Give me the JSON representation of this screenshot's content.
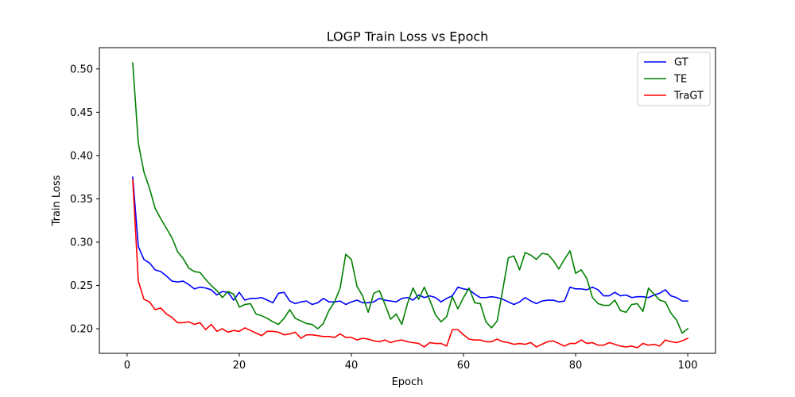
{
  "chart_data": {
    "type": "line",
    "title": "LOGP Train Loss vs Epoch",
    "xlabel": "Epoch",
    "ylabel": "Train Loss",
    "xlim": [
      -4.95,
      104.95
    ],
    "ylim": [
      0.1716,
      0.5246
    ],
    "xticks": [
      0,
      20,
      40,
      60,
      80,
      100
    ],
    "yticks": [
      0.2,
      0.25,
      0.3,
      0.35,
      0.4,
      0.45,
      0.5
    ],
    "xtick_labels": [
      "0",
      "20",
      "40",
      "60",
      "80",
      "100"
    ],
    "ytick_labels": [
      "0.20",
      "0.25",
      "0.30",
      "0.35",
      "0.40",
      "0.45",
      "0.50"
    ],
    "grid": false,
    "legend": "top-right",
    "x": [
      1,
      2,
      3,
      4,
      5,
      6,
      7,
      8,
      9,
      10,
      11,
      12,
      13,
      14,
      15,
      16,
      17,
      18,
      19,
      20,
      21,
      22,
      23,
      24,
      25,
      26,
      27,
      28,
      29,
      30,
      31,
      32,
      33,
      34,
      35,
      36,
      37,
      38,
      39,
      40,
      41,
      42,
      43,
      44,
      45,
      46,
      47,
      48,
      49,
      50,
      51,
      52,
      53,
      54,
      55,
      56,
      57,
      58,
      59,
      60,
      61,
      62,
      63,
      64,
      65,
      66,
      67,
      68,
      69,
      70,
      71,
      72,
      73,
      74,
      75,
      76,
      77,
      78,
      79,
      80,
      81,
      82,
      83,
      84,
      85,
      86,
      87,
      88,
      89,
      90,
      91,
      92,
      93,
      94,
      95,
      96,
      97,
      98,
      99,
      100
    ],
    "series": [
      {
        "name": "GT",
        "color": "#0000ff",
        "values": [
          0.375,
          0.295,
          0.28,
          0.276,
          0.268,
          0.266,
          0.261,
          0.255,
          0.254,
          0.255,
          0.251,
          0.246,
          0.248,
          0.247,
          0.245,
          0.239,
          0.243,
          0.242,
          0.233,
          0.242,
          0.233,
          0.235,
          0.235,
          0.236,
          0.233,
          0.23,
          0.241,
          0.242,
          0.232,
          0.229,
          0.231,
          0.232,
          0.228,
          0.23,
          0.235,
          0.231,
          0.231,
          0.232,
          0.228,
          0.231,
          0.233,
          0.23,
          0.23,
          0.231,
          0.235,
          0.233,
          0.232,
          0.231,
          0.235,
          0.236,
          0.233,
          0.239,
          0.236,
          0.238,
          0.236,
          0.231,
          0.235,
          0.238,
          0.248,
          0.246,
          0.245,
          0.24,
          0.236,
          0.236,
          0.237,
          0.236,
          0.234,
          0.231,
          0.228,
          0.231,
          0.236,
          0.232,
          0.229,
          0.232,
          0.233,
          0.233,
          0.231,
          0.232,
          0.248,
          0.246,
          0.246,
          0.245,
          0.248,
          0.245,
          0.238,
          0.238,
          0.242,
          0.238,
          0.239,
          0.236,
          0.237,
          0.237,
          0.236,
          0.239,
          0.241,
          0.245,
          0.238,
          0.236,
          0.232,
          0.232
        ]
      },
      {
        "name": "TE",
        "color": "#008000",
        "values": [
          0.507,
          0.414,
          0.381,
          0.362,
          0.339,
          0.327,
          0.316,
          0.305,
          0.289,
          0.281,
          0.27,
          0.266,
          0.265,
          0.257,
          0.25,
          0.244,
          0.236,
          0.243,
          0.24,
          0.225,
          0.228,
          0.229,
          0.217,
          0.215,
          0.212,
          0.208,
          0.205,
          0.212,
          0.222,
          0.212,
          0.209,
          0.206,
          0.205,
          0.2,
          0.206,
          0.221,
          0.231,
          0.247,
          0.286,
          0.28,
          0.249,
          0.238,
          0.219,
          0.241,
          0.244,
          0.228,
          0.211,
          0.217,
          0.205,
          0.229,
          0.247,
          0.234,
          0.248,
          0.233,
          0.216,
          0.208,
          0.214,
          0.237,
          0.223,
          0.236,
          0.247,
          0.23,
          0.229,
          0.208,
          0.201,
          0.209,
          0.245,
          0.282,
          0.284,
          0.268,
          0.288,
          0.285,
          0.28,
          0.287,
          0.286,
          0.279,
          0.269,
          0.28,
          0.29,
          0.264,
          0.268,
          0.258,
          0.236,
          0.229,
          0.227,
          0.227,
          0.233,
          0.221,
          0.219,
          0.228,
          0.229,
          0.22,
          0.247,
          0.24,
          0.233,
          0.231,
          0.218,
          0.21,
          0.195,
          0.2
        ]
      },
      {
        "name": "TraGT",
        "color": "#ff0000",
        "values": [
          0.372,
          0.255,
          0.234,
          0.231,
          0.222,
          0.224,
          0.217,
          0.213,
          0.207,
          0.207,
          0.208,
          0.205,
          0.207,
          0.199,
          0.205,
          0.197,
          0.2,
          0.196,
          0.198,
          0.197,
          0.201,
          0.198,
          0.195,
          0.192,
          0.197,
          0.197,
          0.196,
          0.193,
          0.194,
          0.196,
          0.189,
          0.193,
          0.193,
          0.192,
          0.191,
          0.191,
          0.19,
          0.194,
          0.19,
          0.19,
          0.187,
          0.189,
          0.188,
          0.186,
          0.185,
          0.187,
          0.184,
          0.186,
          0.187,
          0.185,
          0.184,
          0.183,
          0.179,
          0.184,
          0.183,
          0.183,
          0.18,
          0.199,
          0.199,
          0.193,
          0.188,
          0.187,
          0.187,
          0.185,
          0.185,
          0.188,
          0.185,
          0.184,
          0.182,
          0.183,
          0.182,
          0.184,
          0.179,
          0.182,
          0.185,
          0.186,
          0.183,
          0.18,
          0.183,
          0.183,
          0.187,
          0.183,
          0.184,
          0.181,
          0.181,
          0.184,
          0.182,
          0.18,
          0.179,
          0.18,
          0.178,
          0.183,
          0.181,
          0.182,
          0.18,
          0.187,
          0.185,
          0.184,
          0.186,
          0.189
        ]
      }
    ]
  }
}
